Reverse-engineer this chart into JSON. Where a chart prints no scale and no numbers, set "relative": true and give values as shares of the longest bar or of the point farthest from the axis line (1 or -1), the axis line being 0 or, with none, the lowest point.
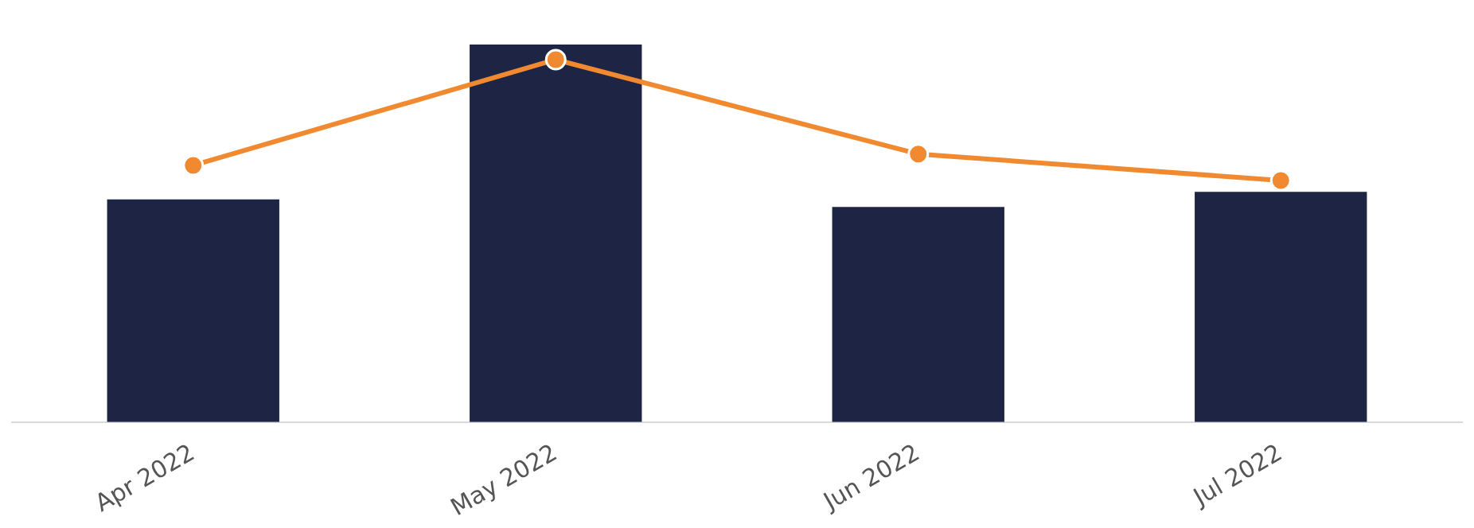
{
  "chart_data": {
    "type": "bar",
    "relative": true,
    "categories": [
      "Apr 2022",
      "May 2022",
      "Jun 2022",
      "Jul 2022"
    ],
    "series": [
      {
        "color": "#1e2444",
        "values": [
          0.59,
          1,
          0.57,
          0.61
        ]
      },
      {
        "type": "line",
        "color": "#f0892f",
        "values": [
          0.68,
          0.96,
          0.71,
          0.64
        ]
      }
    ],
    "marker": "circle",
    "legend": false
  }
}
